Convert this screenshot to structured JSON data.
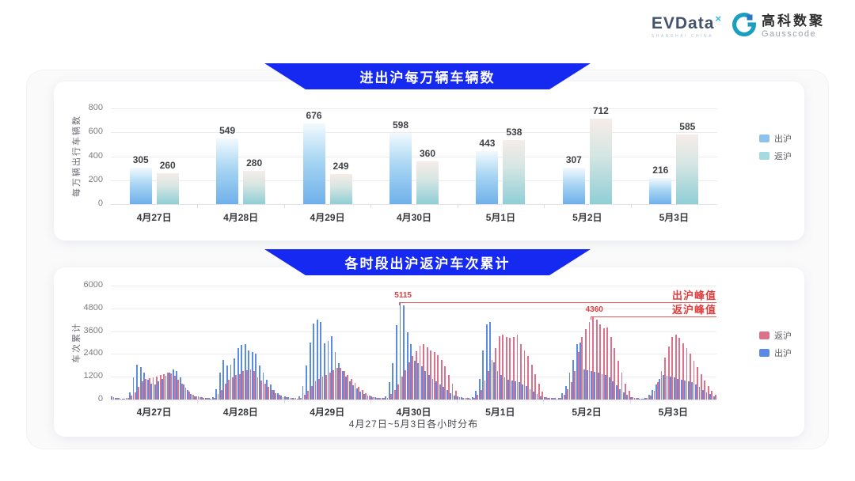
{
  "logo": {
    "evdata_text": "EVData",
    "evdata_mark": "×",
    "evdata_subtext": "SHANGHAI CHINA",
    "gausscode_cn": "高科数聚",
    "gausscode_en": "Gausscode"
  },
  "colors": {
    "banner_blue": "#1629f0",
    "chuhu_bar_gradient": [
      "#f2fafe",
      "#a9d6f3",
      "#6fb0ea"
    ],
    "fanhu_bar_gradient": [
      "#f6ece8",
      "#d6e6e3",
      "#8fced6"
    ],
    "legend1_chuhu": "#8cc2ec",
    "legend1_fanhu": "#a5dade",
    "chuhu_hour_bar": "#5c8be4",
    "fanhu_hour_bar": "#dd7189",
    "annotation_red": "#e23d3d"
  },
  "chart_data": [
    {
      "type": "bar",
      "title": "进出沪每万辆车辆数",
      "ylabel": "每万辆出行车辆数",
      "categories": [
        "4月27日",
        "4月28日",
        "4月29日",
        "4月30日",
        "5月1日",
        "5月2日",
        "5月3日"
      ],
      "series": [
        {
          "name": "出沪",
          "values": [
            305,
            549,
            676,
            598,
            443,
            307,
            216
          ]
        },
        {
          "name": "返沪",
          "values": [
            260,
            280,
            249,
            360,
            538,
            712,
            585
          ]
        }
      ],
      "yticks": [
        0,
        200,
        400,
        600,
        800
      ],
      "ylim": [
        0,
        800
      ],
      "grid": true,
      "legend_position": "right"
    },
    {
      "type": "bar",
      "title": "各时段出沪返沪车次累计",
      "ylabel": "车次累计",
      "xlabel": "4月27日~5月3日各小时分布",
      "categories": [
        "4月27日",
        "4月28日",
        "4月29日",
        "4月30日",
        "5月1日",
        "5月2日",
        "5月3日"
      ],
      "hours_per_day": 24,
      "yticks": [
        0,
        1200,
        2400,
        3600,
        4800,
        6000
      ],
      "ylim": [
        0,
        6000
      ],
      "grid": true,
      "legend_position": "right",
      "legend_order": [
        "返沪",
        "出沪"
      ],
      "series": [
        {
          "name": "出沪",
          "values_by_day": [
            [
              150,
              100,
              80,
              60,
              90,
              380,
              1150,
              1850,
              1700,
              1420,
              1050,
              850,
              800,
              950,
              1100,
              1250,
              1400,
              1600,
              1500,
              1150,
              800,
              500,
              300,
              180
            ],
            [
              180,
              120,
              90,
              80,
              120,
              550,
              1400,
              2100,
              1800,
              1850,
              2150,
              2700,
              2880,
              2900,
              2600,
              2480,
              2400,
              1800,
              1400,
              1050,
              780,
              520,
              320,
              200
            ],
            [
              160,
              110,
              90,
              80,
              150,
              700,
              1800,
              3000,
              4000,
              4200,
              4100,
              2950,
              3100,
              3350,
              2500,
              1900,
              1500,
              1200,
              950,
              750,
              580,
              430,
              300,
              190
            ],
            [
              170,
              120,
              90,
              80,
              160,
              900,
              1900,
              3900,
              5115,
              4950,
              3550,
              2900,
              2050,
              1900,
              1750,
              1500,
              1300,
              1100,
              950,
              800,
              650,
              500,
              350,
              200
            ],
            [
              150,
              110,
              90,
              80,
              120,
              450,
              1100,
              2600,
              3950,
              4100,
              1950,
              1500,
              1300,
              1150,
              1050,
              1000,
              950,
              900,
              800,
              700,
              550,
              420,
              300,
              180
            ],
            [
              140,
              100,
              80,
              70,
              100,
              350,
              700,
              1400,
              2100,
              2900,
              3000,
              1600,
              1550,
              1500,
              1450,
              1400,
              1350,
              1300,
              1150,
              950,
              750,
              550,
              380,
              230
            ],
            [
              130,
              90,
              70,
              60,
              90,
              250,
              500,
              800,
              1100,
              1300,
              1250,
              1200,
              1150,
              1100,
              1050,
              1000,
              950,
              900,
              800,
              650,
              500,
              380,
              280,
              160
            ]
          ]
        },
        {
          "name": "返沪",
          "values_by_day": [
            [
              120,
              80,
              60,
              50,
              70,
              220,
              380,
              650,
              950,
              1080,
              1120,
              1180,
              1220,
              1280,
              1350,
              1420,
              1380,
              1250,
              1050,
              850,
              620,
              420,
              260,
              150
            ],
            [
              140,
              100,
              80,
              60,
              90,
              280,
              520,
              820,
              1050,
              1150,
              1280,
              1350,
              1480,
              1550,
              1580,
              1480,
              1150,
              980,
              820,
              650,
              480,
              340,
              230,
              140
            ],
            [
              130,
              90,
              70,
              60,
              80,
              250,
              450,
              700,
              950,
              1100,
              1200,
              1300,
              1420,
              1560,
              1680,
              1650,
              1480,
              1280,
              1080,
              880,
              680,
              480,
              320,
              200
            ],
            [
              140,
              100,
              80,
              70,
              90,
              300,
              500,
              800,
              1200,
              1550,
              1950,
              2300,
              2550,
              2850,
              2900,
              2750,
              2600,
              2500,
              2350,
              2100,
              1750,
              1300,
              850,
              450
            ],
            [
              130,
              90,
              70,
              60,
              80,
              250,
              500,
              1000,
              1500,
              2100,
              2700,
              3350,
              3400,
              3300,
              3250,
              3300,
              3400,
              2900,
              2600,
              2300,
              1850,
              1350,
              850,
              400
            ],
            [
              120,
              90,
              70,
              60,
              80,
              250,
              550,
              900,
              1500,
              2500,
              3300,
              3700,
              4100,
              4360,
              4200,
              3950,
              3750,
              3800,
              3300,
              2700,
              2050,
              1400,
              850,
              450
            ],
            [
              110,
              80,
              60,
              50,
              70,
              200,
              450,
              900,
              1500,
              2200,
              2800,
              3300,
              3400,
              3250,
              2950,
              2700,
              2400,
              2050,
              1700,
              1350,
              1000,
              700,
              450,
              250
            ]
          ]
        }
      ],
      "annotations": [
        {
          "label": "5115",
          "text": "出沪峰值",
          "value": 5115,
          "day_index": 3,
          "hour": 8
        },
        {
          "label": "4360",
          "text": "返沪峰值",
          "value": 4360,
          "day_index": 5,
          "hour": 13
        }
      ]
    }
  ]
}
